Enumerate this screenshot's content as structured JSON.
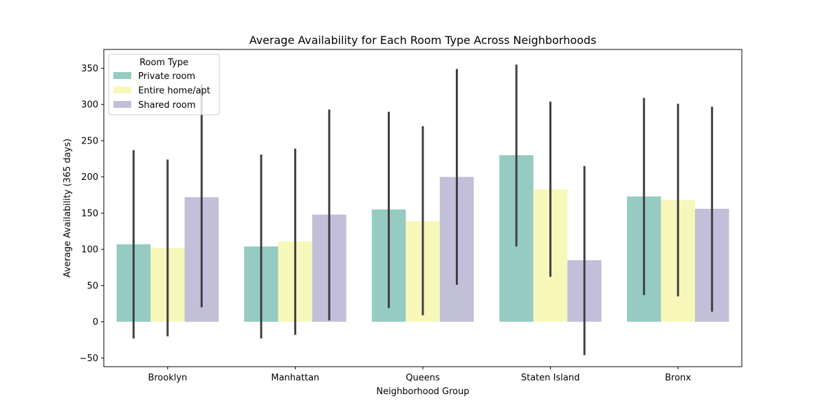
{
  "chart_data": {
    "type": "bar",
    "title": "Average Availability for Each Room Type Across Neighborhoods",
    "xlabel": "Neighborhood Group",
    "ylabel": "Average Availability (365 days)",
    "categories": [
      "Brooklyn",
      "Manhattan",
      "Queens",
      "Staten Island",
      "Bronx"
    ],
    "ylim": [
      -62,
      376
    ],
    "yticks": [
      -50,
      0,
      50,
      100,
      150,
      200,
      250,
      300,
      350
    ],
    "grid": false,
    "legend": {
      "title": "Room Type",
      "placement": "upper-left"
    },
    "series": [
      {
        "name": "Private room",
        "color": "#95cbc0",
        "values": [
          107,
          104,
          155,
          230,
          173
        ],
        "error_low": [
          -23,
          -23,
          19,
          104,
          37
        ],
        "error_high": [
          237,
          231,
          290,
          355,
          309
        ]
      },
      {
        "name": "Entire home/apt",
        "color": "#f7f7ba",
        "values": [
          102,
          111,
          139,
          183,
          168
        ],
        "error_low": [
          -20,
          -18,
          9,
          62,
          35
        ],
        "error_high": [
          224,
          239,
          270,
          304,
          301
        ]
      },
      {
        "name": "Shared room",
        "color": "#c2bfd9",
        "values": [
          172,
          148,
          200,
          85,
          156
        ],
        "error_low": [
          20,
          2,
          51,
          -46,
          14
        ],
        "error_high": [
          328,
          293,
          349,
          215,
          297
        ]
      }
    ],
    "error_bar_color": "#3f3f3f"
  }
}
